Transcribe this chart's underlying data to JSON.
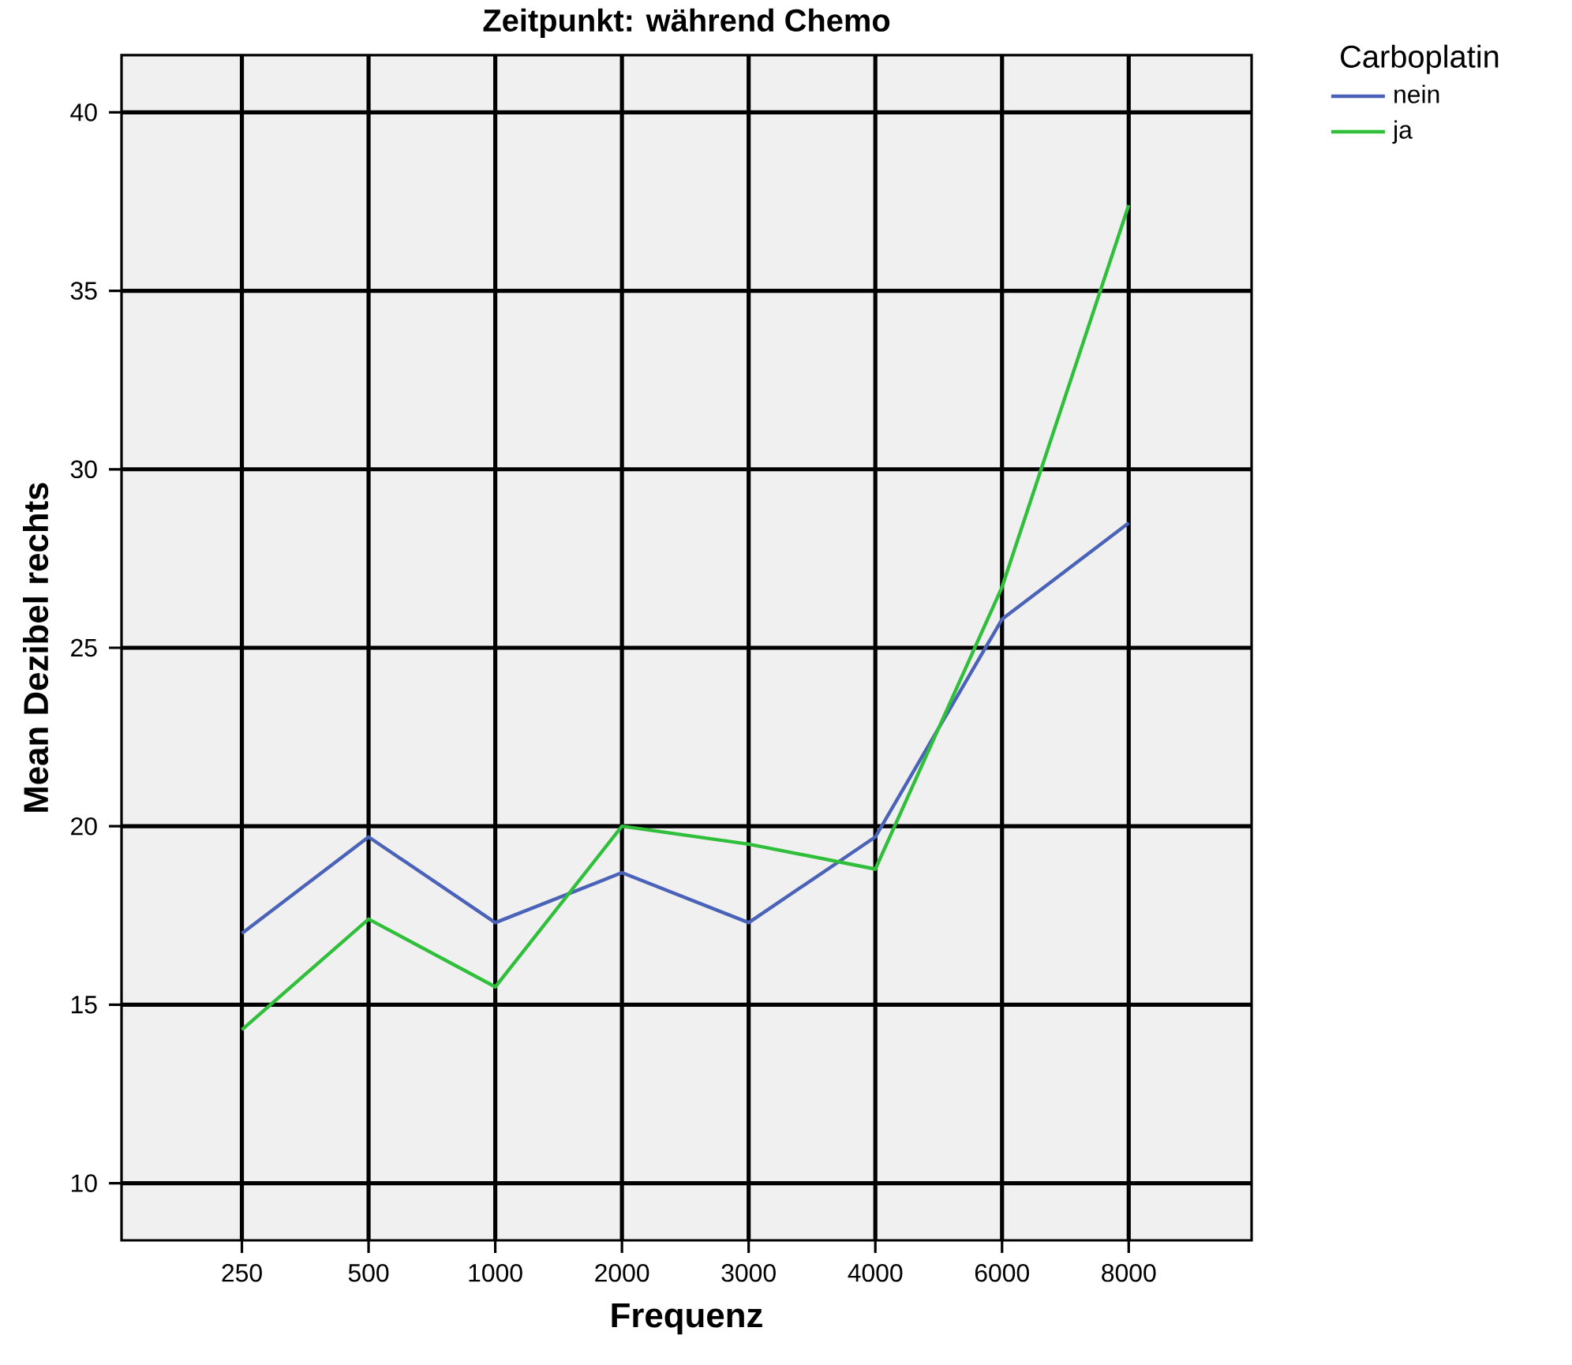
{
  "chart_data": {
    "type": "line",
    "title": "Zeitpunkt: während Chemo",
    "xlabel": "Frequenz",
    "ylabel": "Mean Dezibel rechts",
    "legend_title": "Carboplatin",
    "categories": [
      "250",
      "500",
      "1000",
      "2000",
      "3000",
      "4000",
      "6000",
      "8000"
    ],
    "series": [
      {
        "name": "nein",
        "color": "#4a62b8",
        "values": [
          17.0,
          19.7,
          17.3,
          18.7,
          17.3,
          19.7,
          25.8,
          28.5
        ]
      },
      {
        "name": "ja",
        "color": "#2fbf3a",
        "values": [
          14.3,
          17.4,
          15.5,
          20.0,
          19.5,
          18.8,
          26.7,
          37.4
        ]
      }
    ],
    "ylim": [
      8.4,
      41.6
    ],
    "yticks": [
      10,
      15,
      20,
      25,
      30,
      35,
      40
    ],
    "grid": true,
    "legend": "top right",
    "marker": "none",
    "line_style": "solid"
  }
}
